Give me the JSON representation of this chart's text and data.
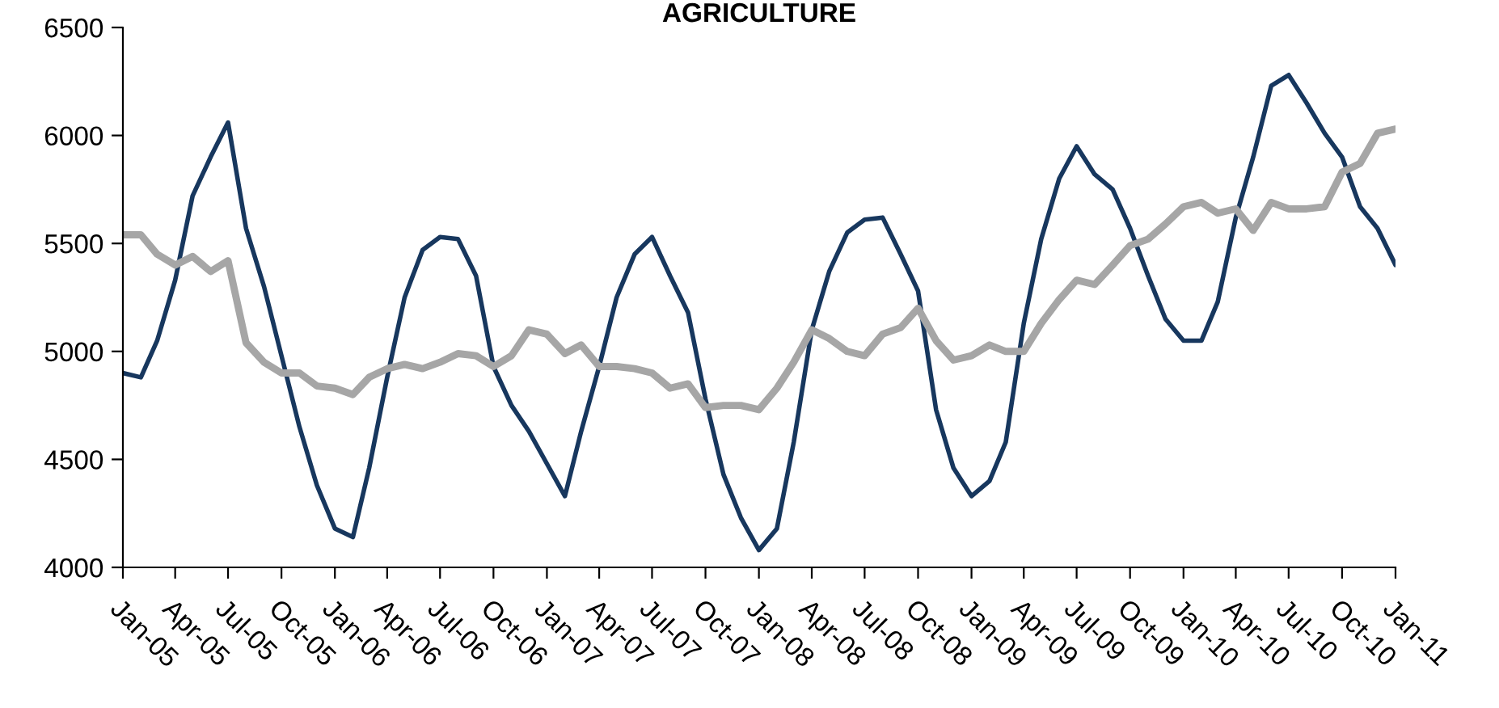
{
  "chart_data": {
    "type": "line",
    "title": "AGRICULTURE",
    "x": [
      "2005-01",
      "2005-02",
      "2005-03",
      "2005-04",
      "2005-05",
      "2005-06",
      "2005-07",
      "2005-08",
      "2005-09",
      "2005-10",
      "2005-11",
      "2005-12",
      "2006-01",
      "2006-02",
      "2006-03",
      "2006-04",
      "2006-05",
      "2006-06",
      "2006-07",
      "2006-08",
      "2006-09",
      "2006-10",
      "2006-11",
      "2006-12",
      "2007-01",
      "2007-02",
      "2007-03",
      "2007-04",
      "2007-05",
      "2007-06",
      "2007-07",
      "2007-08",
      "2007-09",
      "2007-10",
      "2007-11",
      "2007-12",
      "2008-01",
      "2008-02",
      "2008-03",
      "2008-04",
      "2008-05",
      "2008-06",
      "2008-07",
      "2008-08",
      "2008-09",
      "2008-10",
      "2008-11",
      "2008-12",
      "2009-01",
      "2009-02",
      "2009-03",
      "2009-04",
      "2009-05",
      "2009-06",
      "2009-07",
      "2009-08",
      "2009-09",
      "2009-10",
      "2009-11",
      "2009-12",
      "2010-01",
      "2010-02",
      "2010-03",
      "2010-04",
      "2010-05",
      "2010-06",
      "2010-07",
      "2010-08",
      "2010-09",
      "2010-10",
      "2010-11",
      "2010-12",
      "2011-01"
    ],
    "series": [
      {
        "color": "#17375e",
        "values": [
          4900,
          4880,
          5050,
          5330,
          5720,
          5900,
          6060,
          5570,
          5300,
          4980,
          4650,
          4380,
          4180,
          4140,
          4460,
          4880,
          5250,
          5470,
          5530,
          5520,
          5350,
          4930,
          4750,
          4630,
          4480,
          4330,
          4630,
          4930,
          5250,
          5450,
          5530,
          5350,
          5180,
          4780,
          4430,
          4230,
          4080,
          4180,
          4580,
          5100,
          5370,
          5550,
          5610,
          5620,
          5450,
          5280,
          4730,
          4460,
          4330,
          4400,
          4580,
          5130,
          5520,
          5800,
          5950,
          5820,
          5750,
          5570,
          5350,
          5150,
          5050,
          5050,
          5230,
          5620,
          5900,
          6230,
          6280,
          6150,
          6010,
          5900,
          5670,
          5570,
          5400
        ]
      },
      {
        "color": "#a6a6a6",
        "values": [
          5540,
          5540,
          5450,
          5400,
          5440,
          5370,
          5420,
          5040,
          4950,
          4900,
          4900,
          4840,
          4830,
          4800,
          4880,
          4920,
          4940,
          4920,
          4950,
          4990,
          4980,
          4930,
          4980,
          5100,
          5080,
          4990,
          5030,
          4930,
          4930,
          4920,
          4900,
          4830,
          4850,
          4740,
          4750,
          4750,
          4730,
          4830,
          4950,
          5100,
          5060,
          5000,
          4980,
          5080,
          5110,
          5200,
          5050,
          4960,
          4980,
          5030,
          5000,
          5000,
          5130,
          5240,
          5330,
          5310,
          5400,
          5490,
          5520,
          5590,
          5670,
          5690,
          5640,
          5660,
          5560,
          5690,
          5660,
          5660,
          5670,
          5830,
          5870,
          6010,
          6030
        ]
      }
    ],
    "xlim": [
      "2005-01",
      "2011-01"
    ],
    "xticks": [
      {
        "value": "2005-01",
        "label": "Jan-05"
      },
      {
        "value": "2005-04",
        "label": "Apr-05"
      },
      {
        "value": "2005-07",
        "label": "Jul-05"
      },
      {
        "value": "2005-10",
        "label": "Oct-05"
      },
      {
        "value": "2006-01",
        "label": "Jan-06"
      },
      {
        "value": "2006-04",
        "label": "Apr-06"
      },
      {
        "value": "2006-07",
        "label": "Jul-06"
      },
      {
        "value": "2006-10",
        "label": "Oct-06"
      },
      {
        "value": "2007-01",
        "label": "Jan-07"
      },
      {
        "value": "2007-04",
        "label": "Apr-07"
      },
      {
        "value": "2007-07",
        "label": "Jul-07"
      },
      {
        "value": "2007-10",
        "label": "Oct-07"
      },
      {
        "value": "2008-01",
        "label": "Jan-08"
      },
      {
        "value": "2008-04",
        "label": "Apr-08"
      },
      {
        "value": "2008-07",
        "label": "Jul-08"
      },
      {
        "value": "2008-10",
        "label": "Oct-08"
      },
      {
        "value": "2009-01",
        "label": "Jan-09"
      },
      {
        "value": "2009-04",
        "label": "Apr-09"
      },
      {
        "value": "2009-07",
        "label": "Jul-09"
      },
      {
        "value": "2009-10",
        "label": "Oct-09"
      },
      {
        "value": "2010-01",
        "label": "Jan-10"
      },
      {
        "value": "2010-04",
        "label": "Apr-10"
      },
      {
        "value": "2010-07",
        "label": "Jul-10"
      },
      {
        "value": "2010-10",
        "label": "Oct-10"
      },
      {
        "value": "2011-01",
        "label": "Jan-11"
      }
    ],
    "ylim": [
      4000,
      6500
    ],
    "yticks": [
      4000,
      4500,
      5000,
      5500,
      6000,
      6500
    ],
    "grid": false,
    "legend": false
  }
}
